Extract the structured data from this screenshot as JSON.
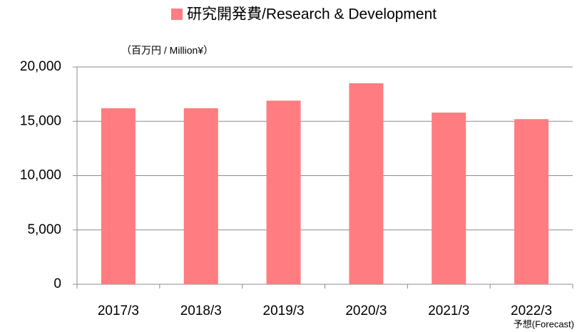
{
  "chart_data": {
    "type": "bar",
    "series": [
      {
        "name": "研究開発費/Research & Development",
        "color": "#ff7c80",
        "values": [
          16200,
          16200,
          16900,
          18500,
          15800,
          15200
        ]
      }
    ],
    "categories": [
      "2017/3",
      "2018/3",
      "2019/3",
      "2020/3",
      "2021/3",
      "2022/3"
    ],
    "y_label": "（百万円 / Million¥）",
    "annotation": "予想(Forecast)",
    "ylim": [
      0,
      20000
    ],
    "yticks": [
      0,
      {
        "value": 5000,
        "label": "5,000"
      },
      {
        "value": 10000,
        "label": "10,000"
      },
      {
        "value": 15000,
        "label": "15,000"
      },
      {
        "value": 20000,
        "label": "20,000"
      }
    ],
    "grid": true
  }
}
